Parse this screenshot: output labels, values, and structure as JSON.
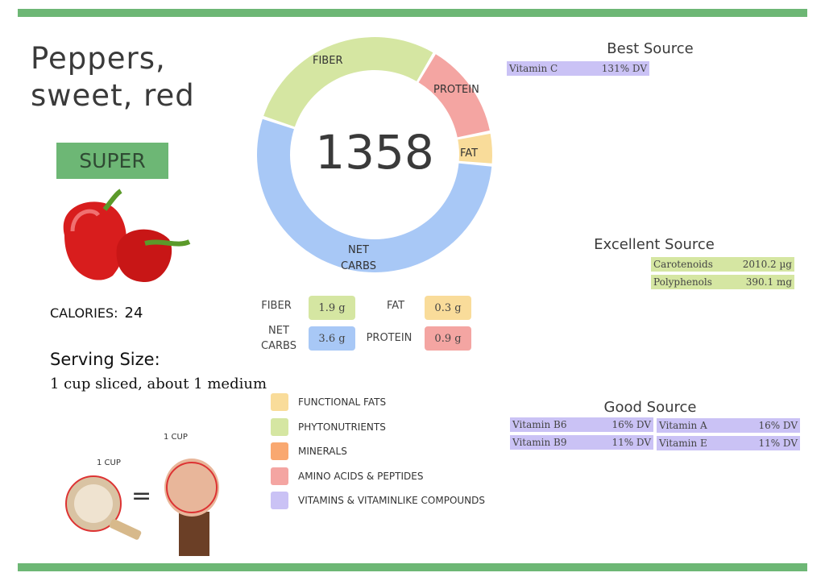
{
  "food": {
    "name_line1": "Peppers,",
    "name_line2": "sweet, red",
    "rating": "SUPER",
    "calories_label": "CALORIES:",
    "calories": "24",
    "serving_label": "Serving Size:",
    "serving_value": "1 cup sliced, about 1 medium",
    "cup_label": "1 CUP",
    "fist_label": "1 CUP",
    "equals": "="
  },
  "donut": {
    "center": "1358",
    "segments": [
      {
        "label": "NET CARBS",
        "value": 3.6,
        "color": "#a8c8f6"
      },
      {
        "label": "FIBER",
        "value": 1.9,
        "color": "#d5e6a2"
      },
      {
        "label": "PROTEIN",
        "value": 0.9,
        "color": "#f4a5a2"
      },
      {
        "label": "FAT",
        "value": 0.3,
        "color": "#f9dc9a"
      }
    ]
  },
  "macros": {
    "fiber_label": "FIBER",
    "fiber": "1.9 g",
    "fat_label": "FAT",
    "fat": "0.3 g",
    "netcarbs_label1": "NET",
    "netcarbs_label2": "CARBS",
    "netcarbs": "3.6 g",
    "protein_label": "PROTEIN",
    "protein": "0.9 g"
  },
  "legend": [
    {
      "label": "FUNCTIONAL FATS",
      "color": "#f9dc9a"
    },
    {
      "label": "PHYTONUTRIENTS",
      "color": "#d5e6a2"
    },
    {
      "label": "MINERALS",
      "color": "#f9a870"
    },
    {
      "label": "AMINO ACIDS & PEPTIDES",
      "color": "#f4a5a2"
    },
    {
      "label": "VITAMINS & VITAMINLIKE COMPOUNDS",
      "color": "#cac2f5"
    }
  ],
  "best": {
    "title": "Best Source",
    "items": [
      {
        "name": "Vitamin C",
        "value": "131% DV"
      }
    ]
  },
  "excellent": {
    "title": "Excellent Source",
    "items": [
      {
        "name": "Carotenoids",
        "value": "2010.2 µg"
      },
      {
        "name": "Polyphenols",
        "value": "390.1 mg"
      }
    ]
  },
  "good": {
    "title": "Good Source",
    "items": [
      {
        "name": "Vitamin B6",
        "value": "16% DV"
      },
      {
        "name": "Vitamin B9",
        "value": "11% DV"
      },
      {
        "name": "Vitamin A",
        "value": "16% DV"
      },
      {
        "name": "Vitamin E",
        "value": "11% DV"
      }
    ]
  }
}
